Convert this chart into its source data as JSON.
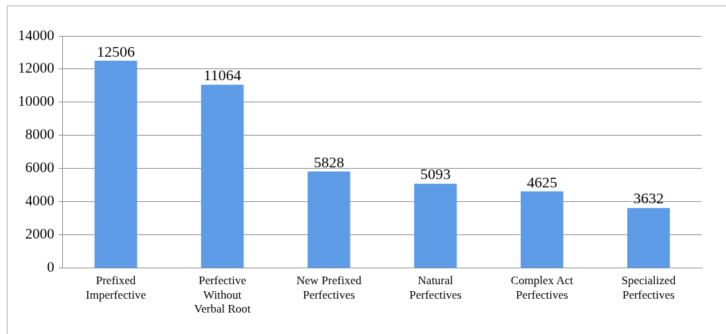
{
  "chart_data": {
    "type": "bar",
    "categories": [
      "Prefixed Imperfective",
      "Perfective Without Verbal Root",
      "New Prefixed Perfectives",
      "Natural Perfectives",
      "Complex Act Perfectives",
      "Specialized Perfectives"
    ],
    "values": [
      12506,
      11064,
      5828,
      5093,
      4625,
      3632
    ],
    "color": "#5e9be6",
    "ylim": [
      0,
      14000
    ],
    "yticks": [
      0,
      2000,
      4000,
      6000,
      8000,
      10000,
      12000,
      14000
    ],
    "grid": "y",
    "data_labels": true
  }
}
